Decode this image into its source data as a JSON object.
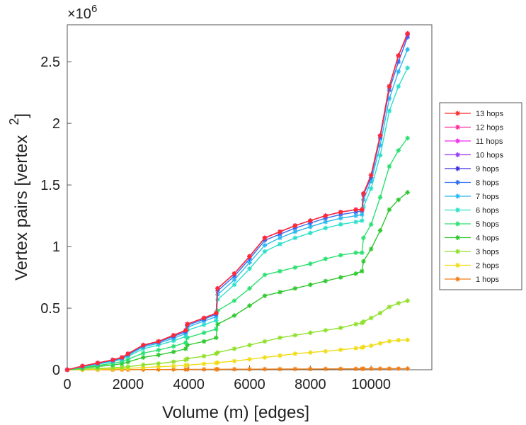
{
  "chart_data": {
    "type": "line",
    "xlabel": "Volume (m) [edges]",
    "ylabel": "Vertex pairs [vertex",
    "ylabel_sup": "2",
    "ylabel_close": "]",
    "y_multiplier": "×10",
    "y_multiplier_exp": "6",
    "xlim": [
      0,
      12000
    ],
    "ylim": [
      0,
      2800000
    ],
    "xticks": [
      0,
      2000,
      4000,
      6000,
      8000,
      10000
    ],
    "xtick_labels": [
      "0",
      "2000",
      "4000",
      "6000",
      "8000",
      "10000"
    ],
    "yticks": [
      0,
      500000,
      1000000,
      1500000,
      2000000,
      2500000
    ],
    "ytick_labels": [
      "0",
      "0.5",
      "1",
      "1.5",
      "2",
      "2.5"
    ],
    "legend_position": "right",
    "marker": "asterisk",
    "x": [
      0,
      500,
      1000,
      1500,
      1800,
      2000,
      2500,
      3000,
      3500,
      3900,
      3950,
      4500,
      4900,
      4950,
      5500,
      6000,
      6500,
      7000,
      7500,
      8000,
      8500,
      9000,
      9500,
      9700,
      9750,
      10000,
      10300,
      10600,
      10900,
      11200
    ],
    "series": [
      {
        "name": "13 hops",
        "color": "#ff2a2a",
        "values": [
          0,
          30000,
          55000,
          80000,
          100000,
          130000,
          200000,
          230000,
          280000,
          320000,
          370000,
          420000,
          460000,
          660000,
          780000,
          920000,
          1070000,
          1120000,
          1170000,
          1210000,
          1250000,
          1280000,
          1300000,
          1300000,
          1430000,
          1580000,
          1900000,
          2300000,
          2550000,
          2730000
        ]
      },
      {
        "name": "12 hops",
        "color": "#ff2a9a",
        "values": [
          0,
          30000,
          55000,
          80000,
          100000,
          130000,
          200000,
          230000,
          280000,
          320000,
          370000,
          420000,
          460000,
          660000,
          780000,
          920000,
          1070000,
          1120000,
          1170000,
          1210000,
          1250000,
          1280000,
          1300000,
          1300000,
          1430000,
          1580000,
          1900000,
          2300000,
          2550000,
          2730000
        ]
      },
      {
        "name": "11 hops",
        "color": "#f02cf0",
        "values": [
          0,
          30000,
          55000,
          80000,
          100000,
          130000,
          200000,
          230000,
          280000,
          320000,
          370000,
          420000,
          460000,
          660000,
          780000,
          920000,
          1070000,
          1120000,
          1170000,
          1210000,
          1250000,
          1280000,
          1300000,
          1300000,
          1430000,
          1580000,
          1900000,
          2300000,
          2550000,
          2730000
        ]
      },
      {
        "name": "10 hops",
        "color": "#9a3cf0",
        "values": [
          0,
          30000,
          55000,
          80000,
          100000,
          130000,
          200000,
          230000,
          280000,
          320000,
          370000,
          420000,
          460000,
          660000,
          780000,
          920000,
          1070000,
          1120000,
          1170000,
          1210000,
          1250000,
          1280000,
          1300000,
          1300000,
          1430000,
          1580000,
          1900000,
          2300000,
          2550000,
          2720000
        ]
      },
      {
        "name": "9 hops",
        "color": "#3a2ee0",
        "values": [
          0,
          30000,
          55000,
          80000,
          100000,
          130000,
          200000,
          230000,
          280000,
          320000,
          370000,
          420000,
          460000,
          660000,
          780000,
          920000,
          1070000,
          1120000,
          1170000,
          1210000,
          1250000,
          1280000,
          1300000,
          1300000,
          1430000,
          1580000,
          1900000,
          2300000,
          2550000,
          2720000
        ]
      },
      {
        "name": "8 hops",
        "color": "#2f6ef0",
        "values": [
          0,
          28000,
          52000,
          77000,
          97000,
          125000,
          195000,
          225000,
          270000,
          310000,
          360000,
          410000,
          450000,
          640000,
          760000,
          900000,
          1050000,
          1100000,
          1150000,
          1190000,
          1230000,
          1260000,
          1280000,
          1290000,
          1420000,
          1560000,
          1880000,
          2270000,
          2500000,
          2700000
        ]
      },
      {
        "name": "7 hops",
        "color": "#2ab8f0",
        "values": [
          0,
          26000,
          49000,
          72000,
          92000,
          118000,
          185000,
          215000,
          255000,
          295000,
          345000,
          395000,
          430000,
          610000,
          730000,
          870000,
          1010000,
          1070000,
          1120000,
          1160000,
          1200000,
          1230000,
          1250000,
          1260000,
          1380000,
          1530000,
          1820000,
          2200000,
          2420000,
          2600000
        ]
      },
      {
        "name": "6 hops",
        "color": "#2ae0c8",
        "values": [
          0,
          24000,
          45000,
          66000,
          85000,
          108000,
          170000,
          200000,
          235000,
          270000,
          320000,
          365000,
          400000,
          570000,
          690000,
          820000,
          960000,
          1020000,
          1070000,
          1110000,
          1150000,
          1180000,
          1200000,
          1210000,
          1320000,
          1470000,
          1740000,
          2100000,
          2300000,
          2450000
        ]
      },
      {
        "name": "5 hops",
        "color": "#2ae070",
        "values": [
          0,
          18000,
          35000,
          52000,
          66000,
          85000,
          135000,
          160000,
          190000,
          220000,
          260000,
          300000,
          330000,
          480000,
          560000,
          660000,
          770000,
          800000,
          830000,
          860000,
          900000,
          930000,
          950000,
          950000,
          1070000,
          1180000,
          1400000,
          1650000,
          1780000,
          1880000
        ]
      },
      {
        "name": "4 hops",
        "color": "#2ec82e",
        "values": [
          0,
          13000,
          26000,
          39000,
          49000,
          63000,
          100000,
          120000,
          145000,
          170000,
          200000,
          230000,
          260000,
          370000,
          440000,
          520000,
          600000,
          630000,
          660000,
          690000,
          720000,
          750000,
          780000,
          800000,
          880000,
          980000,
          1130000,
          1300000,
          1380000,
          1440000
        ]
      },
      {
        "name": "3 hops",
        "color": "#8fe02a",
        "values": [
          0,
          5000,
          10000,
          16000,
          20000,
          25000,
          40000,
          50000,
          65000,
          80000,
          90000,
          110000,
          130000,
          140000,
          170000,
          200000,
          230000,
          260000,
          280000,
          300000,
          320000,
          340000,
          370000,
          380000,
          390000,
          420000,
          460000,
          510000,
          540000,
          560000
        ]
      },
      {
        "name": "2 hops",
        "color": "#f0dc14",
        "values": [
          0,
          2000,
          4000,
          7000,
          9000,
          11000,
          18000,
          24000,
          30000,
          36000,
          38000,
          48000,
          55000,
          58000,
          70000,
          85000,
          100000,
          115000,
          130000,
          140000,
          150000,
          162000,
          175000,
          180000,
          185000,
          195000,
          215000,
          232000,
          240000,
          242000
        ]
      },
      {
        "name": "1 hops",
        "color": "#f07d14",
        "values": [
          0,
          200,
          500,
          800,
          1000,
          1200,
          1600,
          2000,
          2400,
          2800,
          3000,
          3400,
          3800,
          4000,
          4400,
          4800,
          5200,
          5600,
          6000,
          6400,
          6800,
          7200,
          7600,
          7800,
          7900,
          8100,
          8400,
          8700,
          9000,
          9200
        ]
      }
    ]
  }
}
